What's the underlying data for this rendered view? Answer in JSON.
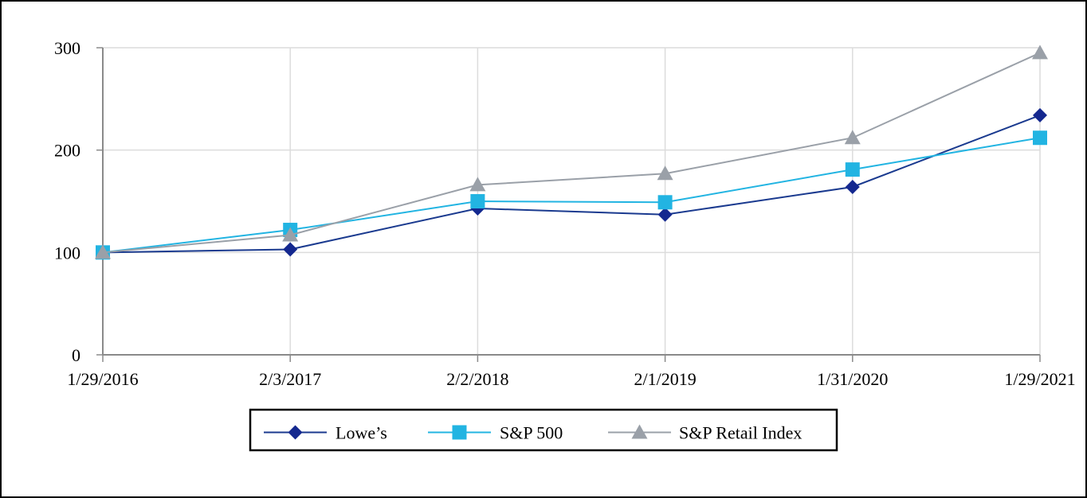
{
  "chart_data": {
    "type": "line",
    "title": "",
    "xlabel": "",
    "ylabel": "",
    "categories": [
      "1/29/2016",
      "2/3/2017",
      "2/2/2018",
      "2/1/2019",
      "1/31/2020",
      "1/29/2021"
    ],
    "ylim": [
      0,
      300
    ],
    "yticks": [
      0,
      100,
      200,
      300
    ],
    "grid": true,
    "legend": "bottom-center",
    "series": [
      {
        "name": "Lowe’s",
        "values": [
          100,
          103,
          143,
          137,
          164,
          234
        ],
        "color": "#1a3a8f",
        "marker": "diamond",
        "marker_color": "#14288f"
      },
      {
        "name": "S&P 500",
        "values": [
          100,
          122,
          150,
          149,
          181,
          212
        ],
        "color": "#22b4e2",
        "marker": "square",
        "marker_color": "#22b4e2"
      },
      {
        "name": "S&P Retail Index",
        "values": [
          100,
          117,
          166,
          177,
          212,
          295
        ],
        "color": "#9aa0a8",
        "marker": "triangle",
        "marker_color": "#9aa0a8"
      }
    ]
  }
}
